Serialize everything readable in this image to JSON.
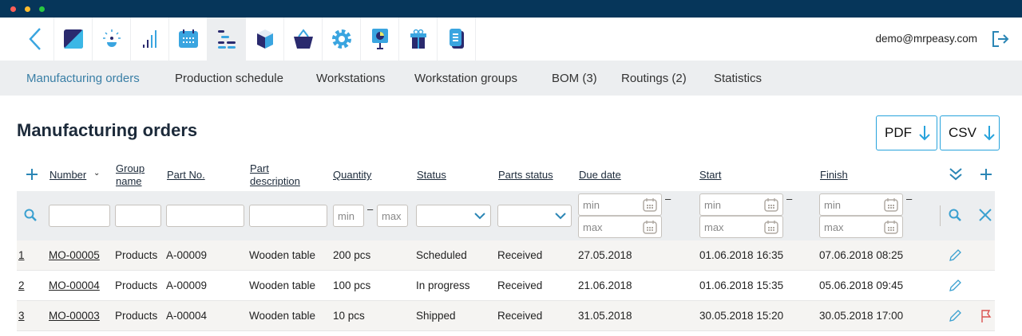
{
  "user": {
    "email": "demo@mrpeasy.com"
  },
  "nav_icons": [
    "back-icon",
    "dashboard-icon",
    "crm-icon",
    "statistics-icon",
    "calendar-icon",
    "production-planning-icon",
    "stock-icon",
    "purchasing-icon",
    "settings-icon",
    "presentation-icon",
    "gift-icon",
    "documents-icon"
  ],
  "subnav": [
    {
      "label": "Manufacturing orders",
      "active": true
    },
    {
      "label": "Production schedule"
    },
    {
      "label": "Workstations"
    },
    {
      "label": "Workstation groups"
    },
    {
      "label": "BOM (3)"
    },
    {
      "label": "Routings (2)"
    },
    {
      "label": "Statistics"
    }
  ],
  "page": {
    "title": "Manufacturing orders",
    "pdf": "PDF",
    "csv": "CSV"
  },
  "columns": {
    "number": "Number",
    "group1": "Group",
    "group2": "name",
    "part_no": "Part No.",
    "desc1": "Part",
    "desc2": "description",
    "quantity": "Quantity",
    "status": "Status",
    "parts_status": "Parts status",
    "due": "Due date",
    "start": "Start",
    "finish": "Finish"
  },
  "filters": {
    "min": "min",
    "max": "max",
    "dash": "–"
  },
  "rows": [
    {
      "n": "1",
      "number": "MO-00005",
      "group": "Products",
      "part": "A-00009",
      "desc": "Wooden table",
      "qty": "200 pcs",
      "status": "Scheduled",
      "parts": "Received",
      "due": "27.05.2018",
      "start": "01.06.2018 16:35",
      "finish": "07.06.2018 08:25",
      "flag": false
    },
    {
      "n": "2",
      "number": "MO-00004",
      "group": "Products",
      "part": "A-00009",
      "desc": "Wooden table",
      "qty": "100 pcs",
      "status": "In progress",
      "parts": "Received",
      "due": "21.06.2018",
      "start": "01.06.2018 15:35",
      "finish": "05.06.2018 09:45",
      "flag": false
    },
    {
      "n": "3",
      "number": "MO-00003",
      "group": "Products",
      "part": "A-00004",
      "desc": "Wooden table",
      "qty": "10 pcs",
      "status": "Shipped",
      "parts": "Received",
      "due": "31.05.2018",
      "start": "30.05.2018 15:20",
      "finish": "30.05.2018 17:00",
      "flag": true
    }
  ],
  "colors": {
    "accent": "#27a3dc",
    "titlebar": "#06365a",
    "row_alt": "#f5f4f2",
    "flag": "#d9534f"
  }
}
